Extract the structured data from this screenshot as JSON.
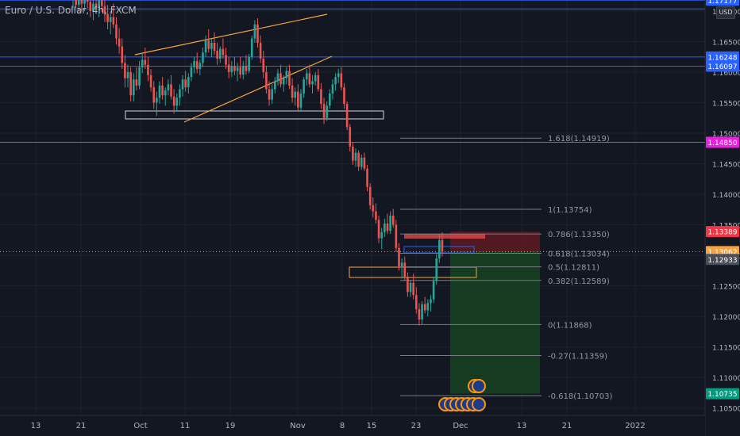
{
  "header": {
    "title": "Euro / U.S. Dollar, 4h, FXCM",
    "currency_button": "USD"
  },
  "colors": {
    "background": "#131722",
    "up_candle": "#26a69a",
    "down_candle": "#ef5350",
    "blue_line": "#2962ff",
    "magenta_line": "#e91ee0",
    "channel_line": "#f7a440",
    "fib_line": "#787b86",
    "stop_zone": "#5b1a22",
    "target_zone": "#153d21"
  },
  "chart_data": {
    "type": "candlestick",
    "symbol": "EURUSD",
    "timeframe": "4h",
    "ylim": [
      1.1025,
      1.1725
    ],
    "x_ticks": [
      "13",
      "21",
      "Oct",
      "11",
      "19",
      "Nov",
      "8",
      "15",
      "23",
      "Dec",
      "13",
      "21",
      "2022"
    ],
    "y_ticks": [
      "1.10500",
      "1.11000",
      "1.11500",
      "1.12000",
      "1.12500",
      "1.13000",
      "1.13500",
      "1.14000",
      "1.14500",
      "1.15000",
      "1.15500",
      "1.16000",
      "1.16500",
      "1.17000"
    ],
    "price_badges": [
      {
        "label": "1.17177",
        "price": 1.17177,
        "color": "#2962ff"
      },
      {
        "label": "1.16248",
        "price": 1.16248,
        "color": "#2962ff"
      },
      {
        "label": "1.16097",
        "price": 1.16097,
        "color": "#2962ff"
      },
      {
        "label": "1.14850",
        "price": 1.1485,
        "color": "#e91ee0"
      },
      {
        "label": "1.13389",
        "price": 1.13389,
        "color": "#f23645"
      },
      {
        "label": "1.13062",
        "price": 1.13062,
        "color": "#f7a440"
      },
      {
        "label": "1.12933",
        "price": 1.12933,
        "color": "#4a4e59"
      },
      {
        "label": "1.10735",
        "price": 1.10735,
        "color": "#089981"
      }
    ],
    "horizontal_levels": [
      {
        "price": 1.17177,
        "color": "#2962ff"
      },
      {
        "price": 1.17035,
        "color": "#2962ff"
      },
      {
        "price": 1.16248,
        "color": "#2962ff"
      },
      {
        "price": 1.16097,
        "color": "#2962ff"
      },
      {
        "price": 1.1485,
        "color": "#e91ee0"
      }
    ],
    "fibonacci": [
      {
        "label": "1.618(1.14919)",
        "price": 1.14919
      },
      {
        "label": "1(1.13754)",
        "price": 1.13754
      },
      {
        "label": "0.786(1.13350)",
        "price": 1.1335
      },
      {
        "label": "0.618(1.13034)",
        "price": 1.13034
      },
      {
        "label": "0.5(1.12811)",
        "price": 1.12811
      },
      {
        "label": "0.382(1.12589)",
        "price": 1.12589
      },
      {
        "label": "0(1.11868)",
        "price": 1.11868
      },
      {
        "label": "-0.27(1.11359)",
        "price": 1.11359
      },
      {
        "label": "-0.618(1.10703)",
        "price": 1.10703
      }
    ],
    "position": {
      "entry": 1.13062,
      "stop": 1.13389,
      "target": 1.10735
    },
    "candles": [
      [
        1.1718,
        1.1745,
        1.1705,
        1.1732
      ],
      [
        1.1732,
        1.1745,
        1.1705,
        1.171
      ],
      [
        1.171,
        1.1735,
        1.1695,
        1.1725
      ],
      [
        1.1725,
        1.174,
        1.17,
        1.1712
      ],
      [
        1.1712,
        1.1738,
        1.17,
        1.1728
      ],
      [
        1.1728,
        1.174,
        1.1705,
        1.1715
      ],
      [
        1.1715,
        1.173,
        1.169,
        1.17
      ],
      [
        1.17,
        1.172,
        1.1685,
        1.1712
      ],
      [
        1.1712,
        1.173,
        1.1695,
        1.1705
      ],
      [
        1.1705,
        1.1728,
        1.169,
        1.1718
      ],
      [
        1.1718,
        1.1735,
        1.1698,
        1.1708
      ],
      [
        1.1708,
        1.172,
        1.1682,
        1.1695
      ],
      [
        1.1695,
        1.171,
        1.167,
        1.1682
      ],
      [
        1.1682,
        1.17,
        1.1662,
        1.169
      ],
      [
        1.169,
        1.1712,
        1.1672,
        1.1678
      ],
      [
        1.1678,
        1.169,
        1.1645,
        1.1655
      ],
      [
        1.1655,
        1.1672,
        1.163,
        1.1642
      ],
      [
        1.1642,
        1.1655,
        1.1605,
        1.1615
      ],
      [
        1.1615,
        1.1628,
        1.1575,
        1.159
      ],
      [
        1.159,
        1.1612,
        1.1575,
        1.16
      ],
      [
        1.16,
        1.1608,
        1.1552,
        1.1562
      ],
      [
        1.1562,
        1.1598,
        1.1552,
        1.1588
      ],
      [
        1.1588,
        1.1608,
        1.157,
        1.1578
      ],
      [
        1.1578,
        1.1618,
        1.1572,
        1.1608
      ],
      [
        1.1608,
        1.163,
        1.1598,
        1.162
      ],
      [
        1.162,
        1.164,
        1.1605,
        1.1612
      ],
      [
        1.1612,
        1.1625,
        1.1585,
        1.1595
      ],
      [
        1.1595,
        1.1605,
        1.1568,
        1.1575
      ],
      [
        1.1575,
        1.1585,
        1.154,
        1.155
      ],
      [
        1.155,
        1.1568,
        1.1528,
        1.1558
      ],
      [
        1.1558,
        1.1585,
        1.1548,
        1.1578
      ],
      [
        1.1578,
        1.1592,
        1.1555,
        1.1562
      ],
      [
        1.1562,
        1.1575,
        1.1545,
        1.157
      ],
      [
        1.157,
        1.1588,
        1.1562,
        1.158
      ],
      [
        1.158,
        1.1595,
        1.1555,
        1.156
      ],
      [
        1.156,
        1.1572,
        1.1532,
        1.1545
      ],
      [
        1.1545,
        1.1565,
        1.1535,
        1.1558
      ],
      [
        1.1558,
        1.158,
        1.1545,
        1.1572
      ],
      [
        1.1572,
        1.1595,
        1.156,
        1.1588
      ],
      [
        1.1588,
        1.1602,
        1.1568,
        1.1575
      ],
      [
        1.1575,
        1.1598,
        1.1565,
        1.1592
      ],
      [
        1.1592,
        1.1615,
        1.1585,
        1.1608
      ],
      [
        1.1608,
        1.1625,
        1.1598,
        1.1618
      ],
      [
        1.1618,
        1.1632,
        1.1598,
        1.1605
      ],
      [
        1.1605,
        1.162,
        1.1595,
        1.1615
      ],
      [
        1.1615,
        1.164,
        1.1608,
        1.1632
      ],
      [
        1.1632,
        1.166,
        1.1625,
        1.1652
      ],
      [
        1.1652,
        1.167,
        1.1632,
        1.1638
      ],
      [
        1.1638,
        1.1655,
        1.1625,
        1.1648
      ],
      [
        1.1648,
        1.1665,
        1.1628,
        1.1635
      ],
      [
        1.1635,
        1.1648,
        1.1612,
        1.1622
      ],
      [
        1.1622,
        1.1642,
        1.1615,
        1.1638
      ],
      [
        1.1638,
        1.1655,
        1.1622,
        1.1628
      ],
      [
        1.1628,
        1.164,
        1.1605,
        1.1612
      ],
      [
        1.1612,
        1.1625,
        1.159,
        1.16
      ],
      [
        1.16,
        1.1618,
        1.1592,
        1.161
      ],
      [
        1.161,
        1.1625,
        1.1595,
        1.1602
      ],
      [
        1.1602,
        1.1615,
        1.1585,
        1.1608
      ],
      [
        1.1608,
        1.1625,
        1.159,
        1.1596
      ],
      [
        1.1596,
        1.1618,
        1.1588,
        1.161
      ],
      [
        1.161,
        1.1628,
        1.1596,
        1.1602
      ],
      [
        1.1602,
        1.163,
        1.1598,
        1.1625
      ],
      [
        1.1625,
        1.166,
        1.162,
        1.1655
      ],
      [
        1.1655,
        1.1685,
        1.1648,
        1.1678
      ],
      [
        1.1678,
        1.1688,
        1.164,
        1.1648
      ],
      [
        1.1648,
        1.166,
        1.1615,
        1.1622
      ],
      [
        1.1622,
        1.1635,
        1.159,
        1.16
      ],
      [
        1.16,
        1.161,
        1.1565,
        1.1572
      ],
      [
        1.1572,
        1.1585,
        1.1545,
        1.1555
      ],
      [
        1.1555,
        1.158,
        1.1548,
        1.1572
      ],
      [
        1.1572,
        1.1592,
        1.1565,
        1.1585
      ],
      [
        1.1585,
        1.1605,
        1.1578,
        1.1598
      ],
      [
        1.1598,
        1.1612,
        1.1575,
        1.158
      ],
      [
        1.158,
        1.1595,
        1.1568,
        1.159
      ],
      [
        1.159,
        1.1608,
        1.158,
        1.1602
      ],
      [
        1.1602,
        1.1612,
        1.1572,
        1.1578
      ],
      [
        1.1578,
        1.159,
        1.155,
        1.1558
      ],
      [
        1.1558,
        1.1575,
        1.1545,
        1.1568
      ],
      [
        1.1568,
        1.158,
        1.1535,
        1.1542
      ],
      [
        1.1542,
        1.1572,
        1.1535,
        1.1565
      ],
      [
        1.1565,
        1.1592,
        1.1558,
        1.1588
      ],
      [
        1.1588,
        1.1605,
        1.1578,
        1.1598
      ],
      [
        1.1598,
        1.1612,
        1.1575,
        1.158
      ],
      [
        1.158,
        1.1595,
        1.1565,
        1.1585
      ],
      [
        1.1585,
        1.16,
        1.1578,
        1.1595
      ],
      [
        1.1595,
        1.1605,
        1.1568,
        1.1572
      ],
      [
        1.1572,
        1.1582,
        1.154,
        1.1548
      ],
      [
        1.1548,
        1.1558,
        1.1515,
        1.1525
      ],
      [
        1.1525,
        1.1552,
        1.152,
        1.1545
      ],
      [
        1.1545,
        1.1572,
        1.154,
        1.1565
      ],
      [
        1.1565,
        1.1588,
        1.1555,
        1.158
      ],
      [
        1.158,
        1.1598,
        1.157,
        1.1592
      ],
      [
        1.1592,
        1.1605,
        1.1582,
        1.1598
      ],
      [
        1.1598,
        1.1608,
        1.157,
        1.1575
      ],
      [
        1.1575,
        1.1582,
        1.154,
        1.1548
      ],
      [
        1.1548,
        1.1552,
        1.1505,
        1.151
      ],
      [
        1.151,
        1.1515,
        1.147,
        1.1478
      ],
      [
        1.1478,
        1.1485,
        1.1448,
        1.1455
      ],
      [
        1.1455,
        1.1475,
        1.1445,
        1.1468
      ],
      [
        1.1468,
        1.1472,
        1.1438,
        1.1445
      ],
      [
        1.1445,
        1.1465,
        1.144,
        1.146
      ],
      [
        1.146,
        1.1468,
        1.1438,
        1.1442
      ],
      [
        1.1442,
        1.1448,
        1.1405,
        1.1412
      ],
      [
        1.1412,
        1.1418,
        1.1375,
        1.1382
      ],
      [
        1.1382,
        1.1395,
        1.1362,
        1.1372
      ],
      [
        1.1372,
        1.1385,
        1.1352,
        1.1358
      ],
      [
        1.1358,
        1.1365,
        1.132,
        1.1328
      ],
      [
        1.1328,
        1.1345,
        1.131,
        1.1338
      ],
      [
        1.1338,
        1.136,
        1.133,
        1.1352
      ],
      [
        1.1352,
        1.1368,
        1.1335,
        1.134
      ],
      [
        1.134,
        1.1372,
        1.1335,
        1.1365
      ],
      [
        1.1365,
        1.1376,
        1.1345,
        1.135
      ],
      [
        1.135,
        1.1358,
        1.1305,
        1.1312
      ],
      [
        1.1312,
        1.132,
        1.1275,
        1.1282
      ],
      [
        1.1282,
        1.1295,
        1.1262,
        1.1288
      ],
      [
        1.1288,
        1.1298,
        1.1258,
        1.1265
      ],
      [
        1.1265,
        1.1272,
        1.1232,
        1.124
      ],
      [
        1.124,
        1.126,
        1.1232,
        1.1255
      ],
      [
        1.1255,
        1.127,
        1.1228,
        1.1235
      ],
      [
        1.1235,
        1.1248,
        1.1205,
        1.1212
      ],
      [
        1.1212,
        1.1222,
        1.1185,
        1.1195
      ],
      [
        1.1195,
        1.1225,
        1.1187,
        1.122
      ],
      [
        1.122,
        1.1232,
        1.1205,
        1.121
      ],
      [
        1.121,
        1.1228,
        1.12,
        1.1222
      ],
      [
        1.1222,
        1.1235,
        1.1208,
        1.1228
      ],
      [
        1.1228,
        1.1265,
        1.1222,
        1.1258
      ],
      [
        1.1258,
        1.1302,
        1.1252,
        1.1295
      ],
      [
        1.1295,
        1.1335,
        1.1288,
        1.1325
      ],
      [
        1.1325,
        1.1338,
        1.1298,
        1.1306
      ]
    ]
  }
}
